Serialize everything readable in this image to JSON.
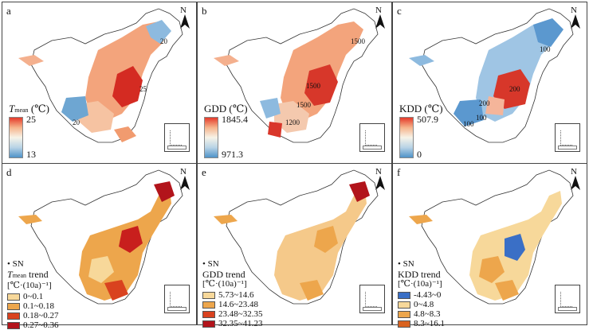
{
  "north_label": "N",
  "panels": [
    {
      "label": "a",
      "legend_title_main": "T",
      "legend_title_sub": "mean",
      "legend_title_unit": " (℃)",
      "max": "25",
      "min": "13",
      "contours": [
        "20",
        "25",
        "20"
      ],
      "grad": [
        "#e43a2a",
        "#f6b48c",
        "#f7f3e8",
        "#b8d3e6",
        "#4f93c8"
      ]
    },
    {
      "label": "b",
      "legend_title": "GDD (℃)",
      "max": "1845.4",
      "min": "971.3",
      "contours": [
        "1500",
        "1500",
        "1500",
        "1200"
      ],
      "grad": [
        "#e43a2a",
        "#f6b48c",
        "#f7f3e8",
        "#b8d3e6",
        "#4f93c8"
      ]
    },
    {
      "label": "c",
      "legend_title": "KDD (℃)",
      "max": "507.9",
      "min": "0",
      "contours": [
        "100",
        "200",
        "200",
        "100",
        "100"
      ],
      "grad": [
        "#e43a2a",
        "#f6b48c",
        "#f7f3e8",
        "#b8d3e6",
        "#4f93c8"
      ]
    },
    {
      "label": "d",
      "sn": "SN",
      "legend_title_main": "T",
      "legend_title_sub": "mean",
      "legend_title_rest": " trend",
      "unit": "[℃·(10a)⁻¹]",
      "classes": [
        {
          "range": "0~0.1",
          "color": "#f7d89a"
        },
        {
          "range": "0.1~0.18",
          "color": "#eda64c"
        },
        {
          "range": "0.18~0.27",
          "color": "#d9421f"
        },
        {
          "range": "0.27~0.36",
          "color": "#b2141b"
        }
      ]
    },
    {
      "label": "e",
      "sn": "SN",
      "legend_title": "GDD trend",
      "unit": "[℃·(10a)⁻¹]",
      "classes": [
        {
          "range": "5.73~14.6",
          "color": "#f7d89a"
        },
        {
          "range": "14.6~23.48",
          "color": "#eda64c"
        },
        {
          "range": "23.48~32.35",
          "color": "#d9421f"
        },
        {
          "range": "32.35~41.23",
          "color": "#b2141b"
        }
      ]
    },
    {
      "label": "f",
      "sn": "SN",
      "legend_title": "KDD trend",
      "unit": "[℃·(10a)⁻¹]",
      "classes": [
        {
          "range": "-4.43~0",
          "color": "#3a6fc6"
        },
        {
          "range": "0~4.8",
          "color": "#f7d89a"
        },
        {
          "range": "4.8~8.3",
          "color": "#eda64c"
        },
        {
          "range": "8.3~16.1",
          "color": "#d9621f"
        }
      ]
    }
  ]
}
